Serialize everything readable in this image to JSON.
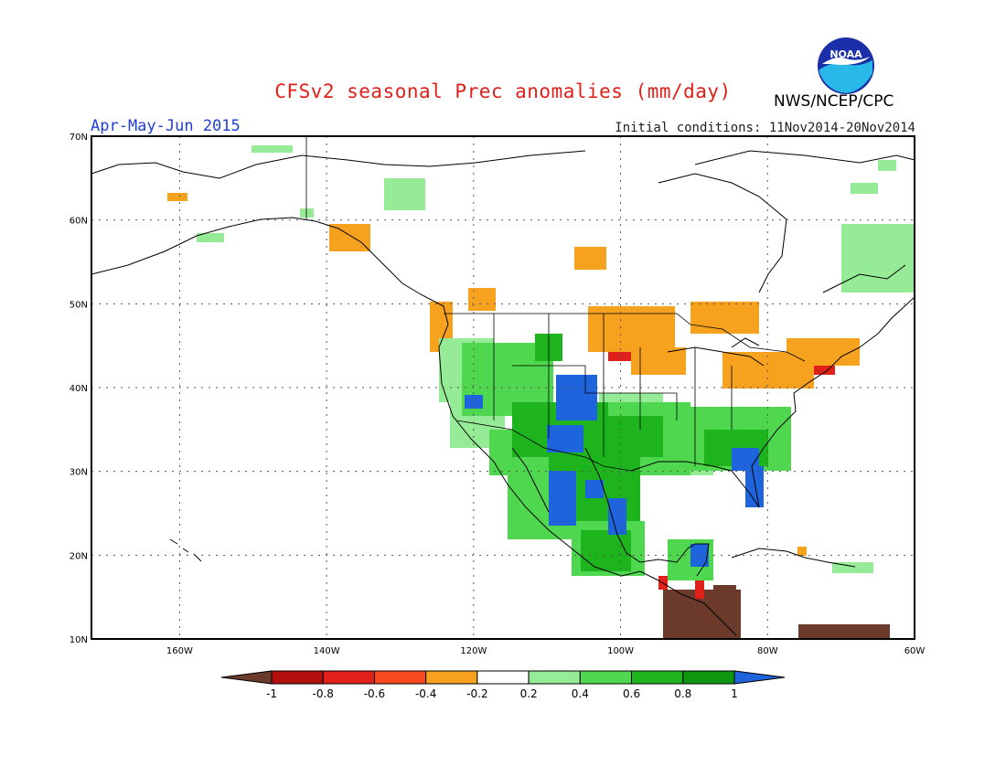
{
  "header": {
    "title": "CFSv2 seasonal Prec anomalies (mm/day)",
    "agency": "NWS/NCEP/CPC",
    "logo_text": "NOAA",
    "period": "Apr-May-Jun 2015",
    "initial_conditions": "Initial conditions: 11Nov2014-20Nov2014"
  },
  "map": {
    "lon_range": [
      -172,
      -60
    ],
    "lat_range": [
      10,
      70
    ],
    "lat_labels": [
      "10N",
      "20N",
      "30N",
      "40N",
      "50N",
      "60N",
      "70N"
    ],
    "lon_labels": [
      "160W",
      "140W",
      "120W",
      "100W",
      "80W",
      "60W"
    ]
  },
  "colorbar": {
    "labels": [
      "-1",
      "-0.8",
      "-0.6",
      "-0.4",
      "-0.2",
      "0.2",
      "0.4",
      "0.6",
      "0.8",
      "1"
    ],
    "colors": [
      "#6b3a2a",
      "#b40f0f",
      "#e0201b",
      "#f7491e",
      "#f7a21e",
      "#ffffff",
      "#96eb96",
      "#50d750",
      "#1eb41e",
      "#0f960f",
      "#1e64dc"
    ]
  },
  "colors": {
    "brown": "#6b3a2a",
    "red": "#e0201b",
    "orange": "#f7a21e",
    "light_green": "#96eb96",
    "green": "#50d750",
    "dark_green": "#1eb41e",
    "blue": "#1e64dc"
  }
}
